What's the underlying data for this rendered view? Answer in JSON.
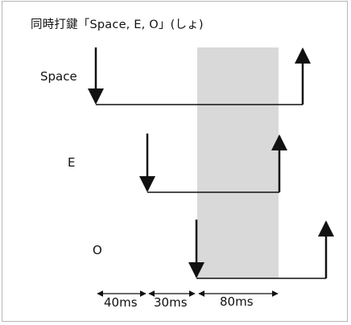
{
  "title": "同時打鍵「Space, E, O」(しょ)",
  "keys": [
    {
      "label": "Space"
    },
    {
      "label": "E"
    },
    {
      "label": "O"
    }
  ],
  "durations": [
    {
      "label": "40ms"
    },
    {
      "label": "30ms"
    },
    {
      "label": "80ms"
    }
  ],
  "colors": {
    "highlight": "#d9d9d9",
    "line": "#111111",
    "frame": "#b5b5b5"
  }
}
